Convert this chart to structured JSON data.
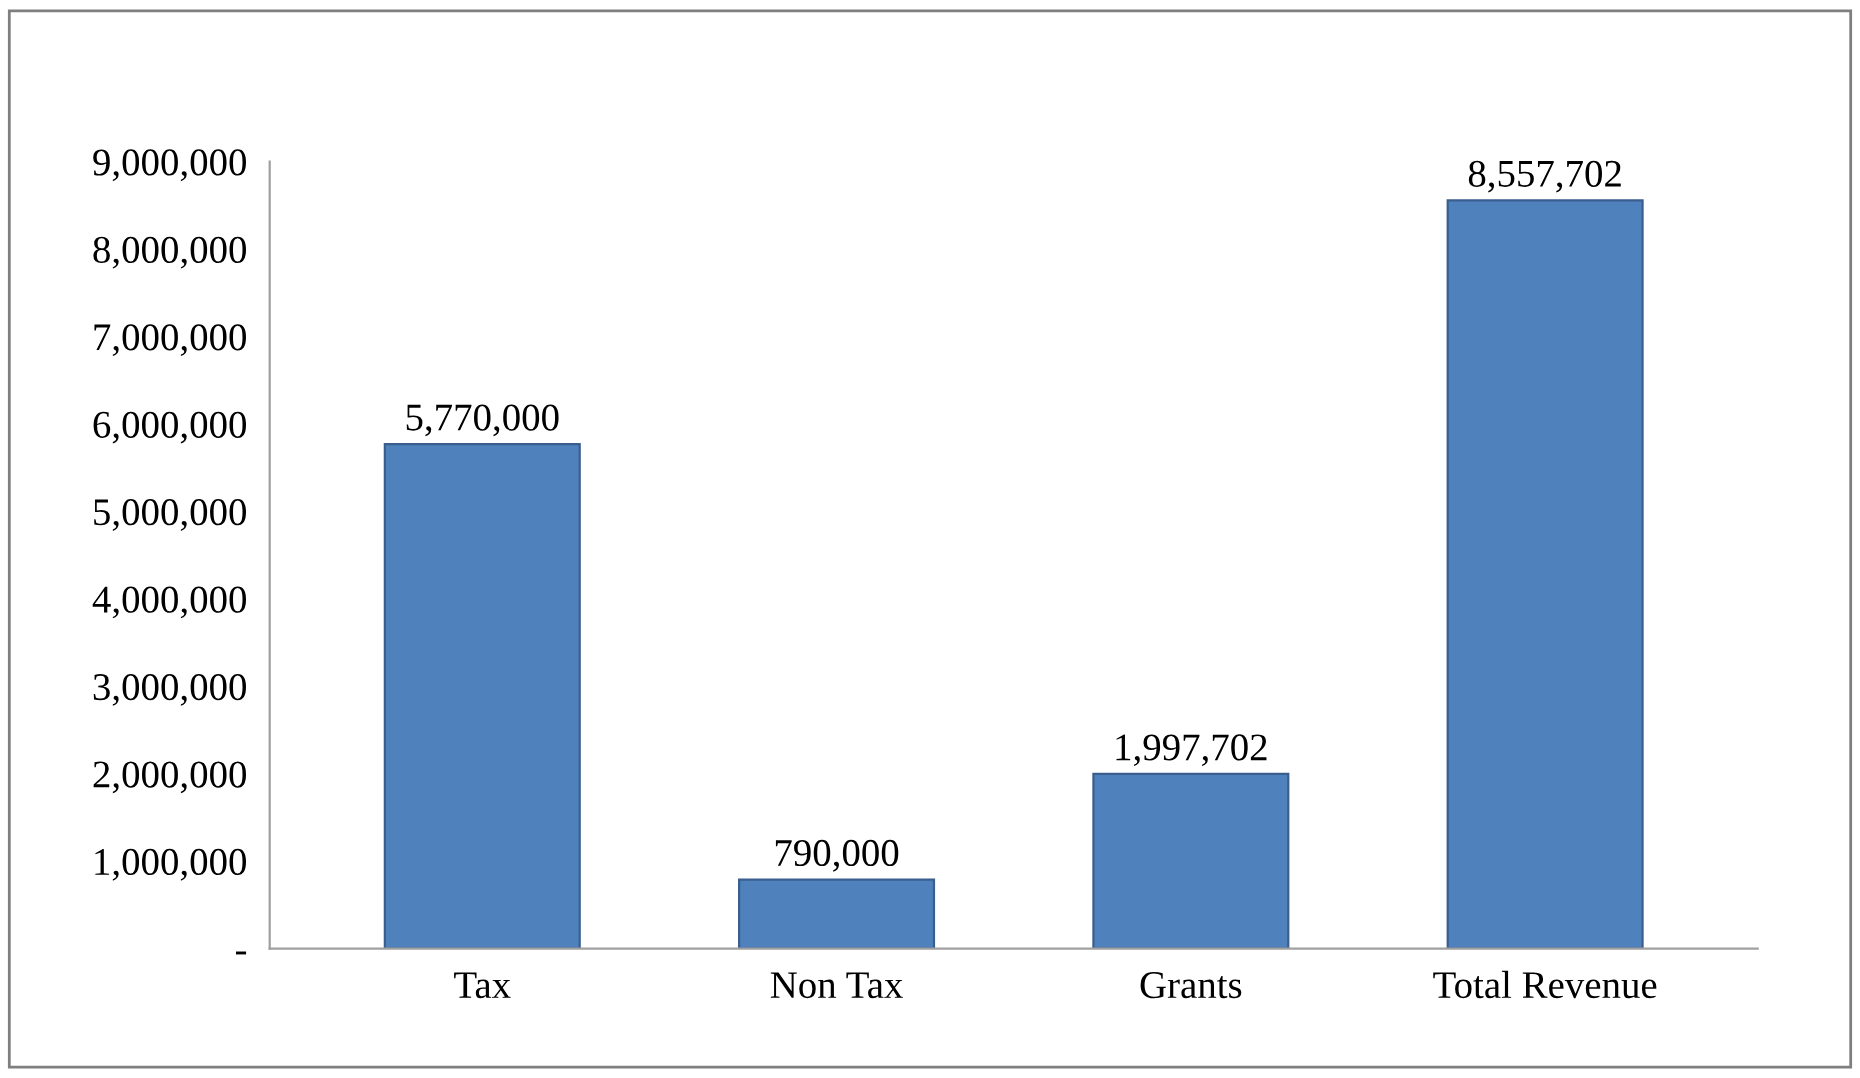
{
  "chart_data": {
    "type": "bar",
    "categories": [
      "Tax",
      "Non Tax",
      "Grants",
      "Total Revenue"
    ],
    "values": [
      5770000,
      790000,
      1997702,
      8557702
    ],
    "value_labels": [
      "5,770,000",
      "790,000",
      "1,997,702",
      "8,557,702"
    ],
    "color": "#4f81bd",
    "ylim": [
      0,
      9000000
    ],
    "yticks": [
      {
        "value": 0,
        "label": "-"
      },
      {
        "value": 1000000,
        "label": "1,000,000"
      },
      {
        "value": 2000000,
        "label": "2,000,000"
      },
      {
        "value": 3000000,
        "label": "3,000,000"
      },
      {
        "value": 4000000,
        "label": "4,000,000"
      },
      {
        "value": 5000000,
        "label": "5,000,000"
      },
      {
        "value": 6000000,
        "label": "6,000,000"
      },
      {
        "value": 7000000,
        "label": "7,000,000"
      },
      {
        "value": 8000000,
        "label": "8,000,000"
      },
      {
        "value": 9000000,
        "label": "9,000,000"
      }
    ],
    "grid": false
  }
}
